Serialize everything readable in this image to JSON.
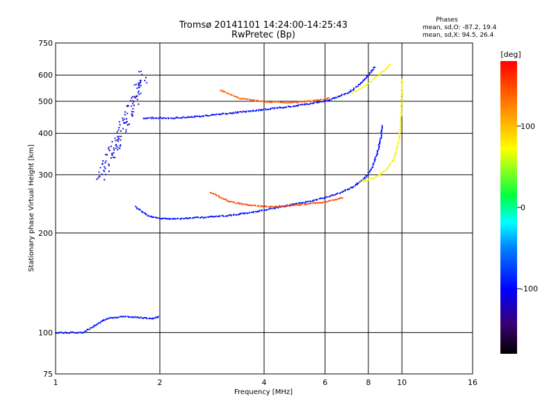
{
  "chart_data": {
    "type": "scatter",
    "title": "Tromsø 20141101 14:24:00-14:25:43",
    "subtitle": "RwPretec (Bp)",
    "xlabel": "Frequency [MHz]",
    "ylabel": "Stationary phase Virtual Height [km]",
    "x_scale": "log",
    "y_scale": "log",
    "xlim": [
      1,
      16
    ],
    "ylim": [
      75,
      750
    ],
    "x_ticks": [
      1,
      2,
      4,
      6,
      8,
      10,
      16
    ],
    "y_ticks": [
      75,
      100,
      200,
      300,
      400,
      500,
      600,
      750
    ],
    "grid": true,
    "phases_box": {
      "heading": "Phases",
      "line_o": "mean, sd,O:  -87.2, 19.4",
      "line_x": "mean, sd,X:   94.5, 26.4"
    },
    "colorbar": {
      "label": "[deg]",
      "range": [
        -180,
        180
      ],
      "ticks": [
        100,
        0,
        -100
      ],
      "colormap": "rainbow"
    },
    "traces": [
      {
        "name": "F-region O-mode trace",
        "phase": -95,
        "points": [
          [
            1.7,
            240
          ],
          [
            1.85,
            225
          ],
          [
            2.0,
            221
          ],
          [
            2.3,
            221
          ],
          [
            2.7,
            223
          ],
          [
            3.2,
            226
          ],
          [
            3.8,
            232
          ],
          [
            4.5,
            240
          ],
          [
            5.5,
            250
          ],
          [
            6.5,
            262
          ],
          [
            7.2,
            275
          ],
          [
            7.8,
            292
          ],
          [
            8.2,
            315
          ],
          [
            8.5,
            350
          ],
          [
            8.7,
            390
          ],
          [
            8.8,
            425
          ]
        ]
      },
      {
        "name": "F-region X-mode trace",
        "phase": 150,
        "points": [
          [
            2.8,
            265
          ],
          [
            3.2,
            248
          ],
          [
            3.7,
            242
          ],
          [
            4.2,
            240
          ],
          [
            5.0,
            243
          ],
          [
            6.0,
            248
          ],
          [
            6.8,
            256
          ]
        ]
      },
      {
        "name": "F-region X-mode trace (high)",
        "phase": 75,
        "points": [
          [
            7.6,
            285
          ],
          [
            8.4,
            295
          ],
          [
            9.0,
            310
          ],
          [
            9.5,
            335
          ],
          [
            9.8,
            380
          ],
          [
            9.95,
            440
          ],
          [
            10.0,
            520
          ],
          [
            10.0,
            590
          ]
        ]
      },
      {
        "name": "Multi-hop O-mode trace",
        "phase": -95,
        "points": [
          [
            1.8,
            445
          ],
          [
            2.2,
            445
          ],
          [
            2.6,
            450
          ],
          [
            3.2,
            460
          ],
          [
            4.0,
            472
          ],
          [
            5.0,
            485
          ],
          [
            6.0,
            500
          ],
          [
            7.0,
            530
          ],
          [
            7.6,
            565
          ],
          [
            8.0,
            600
          ],
          [
            8.4,
            640
          ]
        ]
      },
      {
        "name": "Multi-hop X-mode trace",
        "phase": 140,
        "points": [
          [
            3.0,
            540
          ],
          [
            3.4,
            510
          ],
          [
            3.9,
            500
          ],
          [
            4.6,
            495
          ],
          [
            5.4,
            500
          ],
          [
            6.2,
            510
          ]
        ]
      },
      {
        "name": "Multi-hop X-mode trace (high)",
        "phase": 75,
        "points": [
          [
            7.2,
            530
          ],
          [
            7.8,
            555
          ],
          [
            8.4,
            590
          ],
          [
            8.9,
            620
          ],
          [
            9.3,
            650
          ]
        ]
      },
      {
        "name": "Spread-F cluster",
        "phase": -110,
        "points": [
          [
            1.35,
            300
          ],
          [
            1.5,
            380
          ],
          [
            1.6,
            450
          ],
          [
            1.7,
            520
          ],
          [
            1.8,
            600
          ]
        ]
      },
      {
        "name": "E-region echoes",
        "phase": -95,
        "points": [
          [
            1.0,
            100
          ],
          [
            1.2,
            100
          ],
          [
            1.4,
            110
          ],
          [
            1.6,
            112
          ],
          [
            1.9,
            110
          ],
          [
            2.0,
            112
          ]
        ]
      }
    ]
  }
}
